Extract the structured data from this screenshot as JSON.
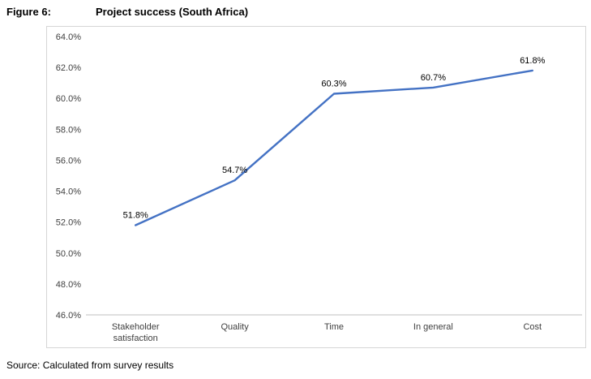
{
  "figure": {
    "label": "Figure 6:",
    "title": "Project success (South Africa)"
  },
  "source": "Source: Calculated from survey results",
  "chart_data": {
    "type": "line",
    "title": "",
    "xlabel": "",
    "ylabel": "",
    "categories": [
      "Stakeholder satisfaction",
      "Quality",
      "Time",
      "In general",
      "Cost"
    ],
    "values": [
      51.8,
      54.7,
      60.3,
      60.7,
      61.8
    ],
    "data_labels": [
      "51.8%",
      "54.7%",
      "60.3%",
      "60.7%",
      "61.8%"
    ],
    "ylim": [
      46.0,
      64.0
    ],
    "ytick_step": 2.0,
    "ytick_labels": [
      "46.0%",
      "48.0%",
      "50.0%",
      "52.0%",
      "54.0%",
      "56.0%",
      "58.0%",
      "60.0%",
      "62.0%",
      "64.0%"
    ],
    "grid": false,
    "legend": "none",
    "line_color": "#4472c4"
  }
}
